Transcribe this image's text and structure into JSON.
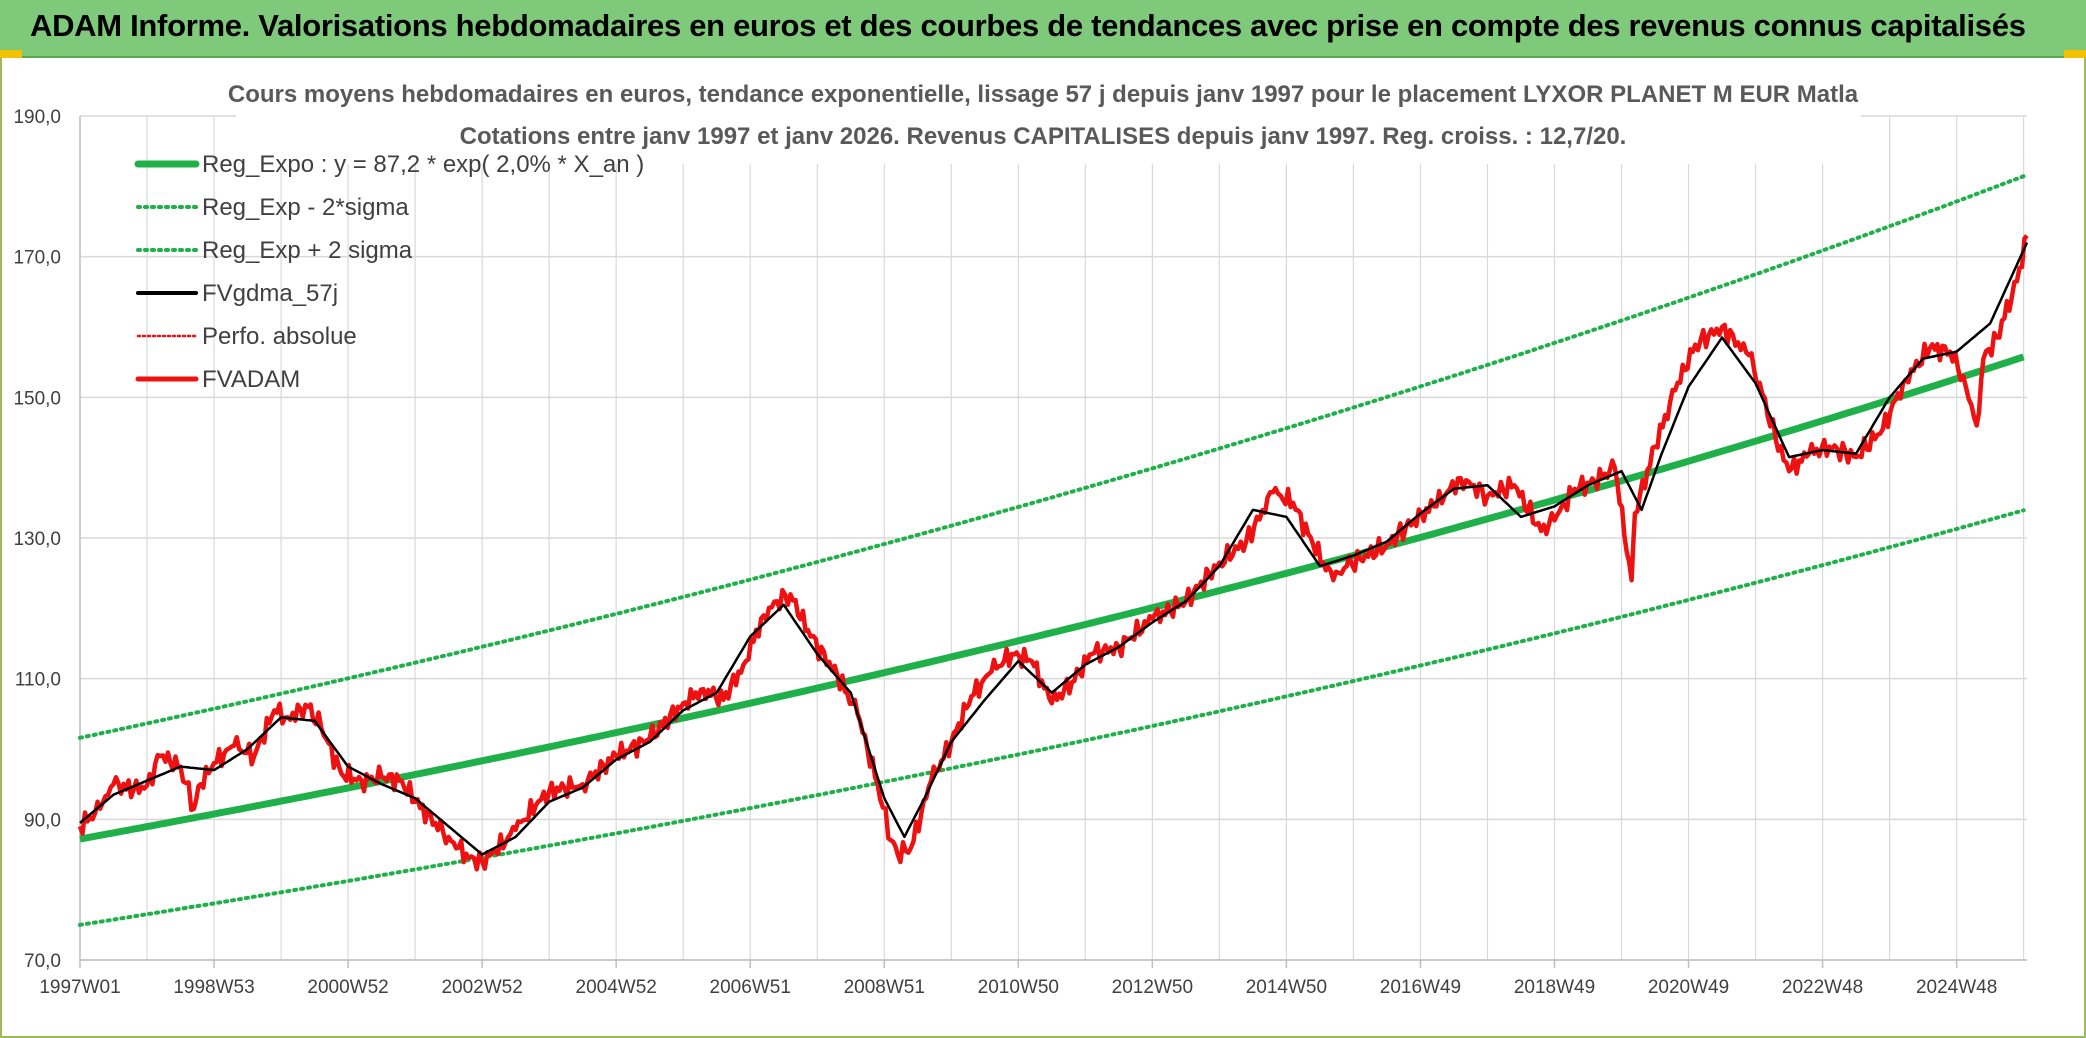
{
  "header": {
    "title": "ADAM Informe. Valorisations hebdomadaires en euros et des courbes de tendances avec prise en compte des revenus connus capitalisés"
  },
  "colors": {
    "banner": "#7fc97a",
    "reg": "#1fb04a",
    "mma": "#000000",
    "fvadam": "#ee1111",
    "perfo": "#ee1111",
    "grid": "#d9d9d9"
  },
  "chart_data": {
    "type": "line",
    "title": "Cours moyens hebdomadaires en euros, tendance exponentielle, lissage 57 j depuis janv 1997 pour le placement LYXOR PLANET M EUR Matla",
    "subtitle": "Cotations entre janv 1997 et janv 2026. Revenus CAPITALISES depuis janv 1997. Reg. croiss. : 12,7/20.",
    "xlabel": "",
    "ylabel": "",
    "ylim": [
      70,
      190
    ],
    "xlim": [
      1997.0,
      2026.05
    ],
    "y_ticks": [
      "70,0",
      "90,0",
      "110,0",
      "130,0",
      "150,0",
      "170,0",
      "190,0"
    ],
    "y_tick_values": [
      70,
      90,
      110,
      130,
      150,
      170,
      190
    ],
    "x_ticks": [
      "1997W01",
      "1998W53",
      "2000W52",
      "2002W52",
      "2004W52",
      "2006W51",
      "2008W51",
      "2010W50",
      "2012W50",
      "2014W50",
      "2016W49",
      "2018W49",
      "2020W49",
      "2022W48",
      "2024W48"
    ],
    "x_tick_values": [
      1997.0,
      1999.0,
      2001.0,
      2003.0,
      2005.0,
      2007.0,
      2009.0,
      2011.0,
      2013.0,
      2015.0,
      2017.0,
      2019.0,
      2021.0,
      2023.0,
      2025.0
    ],
    "grid": true,
    "legend_position": "top-left",
    "legend": [
      {
        "key": "reg",
        "label": "Reg_Expo : y = 87,2 * exp( 2,0% *  X_an )"
      },
      {
        "key": "reg_lo",
        "label": "Reg_Exp - 2*sigma"
      },
      {
        "key": "reg_hi",
        "label": "Reg_Exp + 2 sigma"
      },
      {
        "key": "mma",
        "label": "FVgdma_57j"
      },
      {
        "key": "perfo",
        "label": "Perfo. absolue"
      },
      {
        "key": "fvadam",
        "label": "FVADAM"
      }
    ],
    "regression": {
      "a": 87.2,
      "rate": 0.02,
      "x0": 1997.0,
      "band_low_factor": 0.86,
      "band_high_factor": 1.165
    },
    "series": [
      {
        "name": "FVADAM",
        "x": [
          1997.0,
          1997.3,
          1997.5,
          1997.8,
          1998.0,
          1998.2,
          1998.5,
          1998.7,
          1998.8,
          1999.0,
          1999.3,
          1999.6,
          1999.9,
          2000.1,
          2000.4,
          2000.6,
          2000.9,
          2001.2,
          2001.5,
          2001.8,
          2002.0,
          2002.3,
          2002.5,
          2002.8,
          2003.0,
          2003.2,
          2003.5,
          2003.8,
          2004.0,
          2004.5,
          2005.0,
          2005.5,
          2006.0,
          2006.3,
          2006.6,
          2006.9,
          2007.2,
          2007.4,
          2007.6,
          2007.9,
          2008.3,
          2008.6,
          2008.9,
          2009.1,
          2009.2,
          2009.4,
          2009.7,
          2010.0,
          2010.3,
          2010.6,
          2010.9,
          2011.2,
          2011.5,
          2011.8,
          2012.1,
          2012.5,
          2013.0,
          2013.5,
          2014.0,
          2014.4,
          2014.8,
          2015.1,
          2015.4,
          2015.7,
          2015.9,
          2016.1,
          2016.5,
          2016.9,
          2017.2,
          2017.6,
          2018.0,
          2018.4,
          2018.8,
          2019.0,
          2019.3,
          2019.6,
          2019.9,
          2020.15,
          2020.2,
          2020.5,
          2020.8,
          2021.1,
          2021.5,
          2021.9,
          2022.1,
          2022.3,
          2022.5,
          2022.8,
          2023.1,
          2023.5,
          2023.9,
          2024.2,
          2024.6,
          2024.9,
          2025.1,
          2025.3,
          2025.4,
          2025.6,
          2025.9,
          2026.05
        ],
        "values": [
          89.0,
          91.5,
          95.0,
          94.2,
          94.8,
          99.0,
          97.5,
          91.5,
          95.0,
          98.0,
          100.5,
          99.0,
          105.5,
          104.5,
          106.0,
          103.0,
          96.5,
          95.5,
          96.0,
          95.5,
          92.5,
          89.5,
          87.5,
          84.5,
          84.0,
          85.5,
          88.5,
          92.0,
          94.0,
          95.0,
          99.0,
          101.5,
          106.5,
          108.5,
          107.0,
          112.0,
          119.0,
          121.0,
          122.0,
          116.0,
          110.5,
          105.0,
          95.0,
          87.0,
          85.0,
          86.0,
          95.5,
          101.0,
          107.5,
          111.0,
          113.5,
          112.5,
          106.5,
          109.5,
          113.5,
          114.5,
          118.5,
          121.0,
          126.5,
          129.5,
          136.5,
          135.0,
          129.0,
          124.0,
          126.0,
          127.0,
          129.0,
          132.5,
          134.5,
          138.5,
          136.0,
          137.5,
          131.0,
          132.5,
          137.0,
          138.0,
          140.0,
          124.0,
          133.5,
          143.0,
          151.0,
          157.5,
          160.0,
          156.0,
          150.5,
          144.0,
          139.5,
          142.0,
          143.0,
          141.5,
          145.5,
          152.0,
          157.0,
          156.5,
          153.0,
          146.0,
          155.5,
          158.5,
          166.5,
          173.0
        ]
      },
      {
        "name": "FVgdma_57j",
        "x": [
          1997.0,
          1997.5,
          1998.0,
          1998.5,
          1999.0,
          1999.5,
          2000.0,
          2000.5,
          2001.0,
          2001.5,
          2002.0,
          2002.5,
          2003.0,
          2003.5,
          2004.0,
          2004.5,
          2005.0,
          2005.5,
          2006.0,
          2006.5,
          2007.0,
          2007.5,
          2008.0,
          2008.5,
          2009.0,
          2009.3,
          2009.6,
          2010.0,
          2010.5,
          2011.0,
          2011.5,
          2012.0,
          2012.5,
          2013.0,
          2013.5,
          2014.0,
          2014.5,
          2015.0,
          2015.5,
          2016.0,
          2016.5,
          2017.0,
          2017.5,
          2018.0,
          2018.5,
          2019.0,
          2019.5,
          2020.0,
          2020.3,
          2020.6,
          2021.0,
          2021.5,
          2022.0,
          2022.5,
          2023.0,
          2023.5,
          2024.0,
          2024.5,
          2025.0,
          2025.5,
          2026.05
        ],
        "values": [
          89.5,
          93.5,
          95.5,
          97.5,
          97.0,
          100.0,
          104.5,
          104.0,
          97.5,
          95.0,
          93.0,
          89.0,
          85.0,
          87.5,
          92.5,
          94.5,
          98.5,
          101.0,
          105.5,
          108.0,
          116.0,
          120.5,
          113.5,
          108.0,
          93.0,
          87.5,
          93.0,
          101.0,
          107.0,
          112.5,
          108.0,
          112.0,
          114.5,
          118.0,
          121.0,
          126.0,
          134.0,
          133.0,
          126.0,
          127.5,
          129.5,
          133.5,
          137.0,
          137.5,
          133.0,
          134.5,
          137.5,
          139.5,
          134.0,
          142.0,
          151.5,
          158.5,
          152.0,
          141.5,
          142.5,
          142.0,
          150.0,
          155.5,
          156.5,
          160.5,
          172.0
        ]
      }
    ]
  }
}
